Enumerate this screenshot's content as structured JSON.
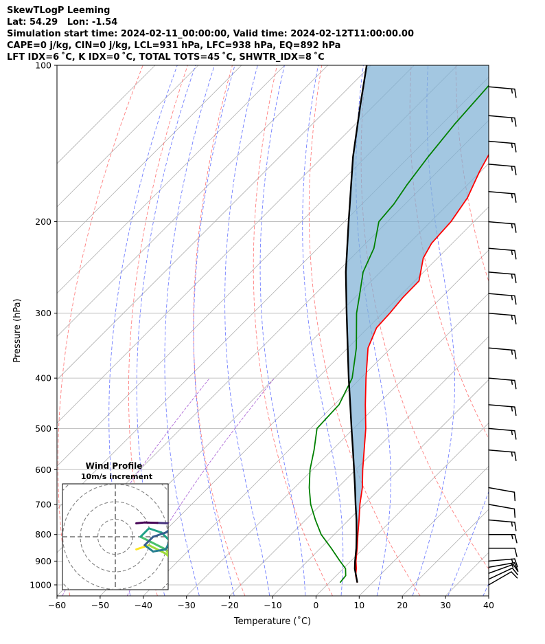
{
  "header": {
    "line1": "SkewTLogP Leeming",
    "line2": "Lat: 54.29   Lon: -1.54",
    "line3": "Simulation start time: 2024-02-11_00:00:00, Valid time: 2024-02-12T11:00:00.00",
    "line4": "CAPE=0 j/kg, CIN=0 j/kg, LCL=931 hPa, LFC=938 hPa, EQ=892 hPa",
    "line5": "LFT IDX=6 ˚C, K IDX=0 ˚C, TOTAL TOTS=45 ˚C, SHWTR_IDX=8 ˚C"
  },
  "chart_data": {
    "type": "line",
    "title": "SkewTLogP Leeming",
    "xlabel": "Temperature (˚C)",
    "ylabel": "Pressure (hPa)",
    "xlim": [
      -60,
      40
    ],
    "ylim": [
      1050,
      100
    ],
    "y_scale": "log",
    "skew_deg": 45,
    "grid": true,
    "x_ticks": [
      -60,
      -50,
      -40,
      -30,
      -20,
      -10,
      0,
      10,
      20,
      30,
      40
    ],
    "x_tick_labels": [
      "−60",
      "−50",
      "−40",
      "−30",
      "−20",
      "−10",
      "0",
      "10",
      "20",
      "30",
      "40"
    ],
    "y_ticks": [
      1000,
      900,
      800,
      700,
      600,
      500,
      400,
      300,
      200,
      100
    ],
    "y_tick_labels": [
      "1000",
      "900",
      "800",
      "700",
      "600",
      "500",
      "400",
      "300",
      "200",
      "100"
    ],
    "series": [
      {
        "role": "temperature",
        "color": "#ff0000",
        "points": [
          {
            "p": 990,
            "t": 6.5
          },
          {
            "p": 960,
            "t": 4.5
          },
          {
            "p": 930,
            "t": 3.0
          },
          {
            "p": 900,
            "t": 1.2
          },
          {
            "p": 850,
            "t": -1.5
          },
          {
            "p": 800,
            "t": -4.5
          },
          {
            "p": 750,
            "t": -7.6
          },
          {
            "p": 700,
            "t": -11.0
          },
          {
            "p": 650,
            "t": -14.3
          },
          {
            "p": 600,
            "t": -18.4
          },
          {
            "p": 550,
            "t": -22.6
          },
          {
            "p": 500,
            "t": -27.2
          },
          {
            "p": 450,
            "t": -32.8
          },
          {
            "p": 400,
            "t": -38.8
          },
          {
            "p": 350,
            "t": -45.3
          },
          {
            "p": 320,
            "t": -48.0
          },
          {
            "p": 300,
            "t": -48.3
          },
          {
            "p": 280,
            "t": -48.9
          },
          {
            "p": 260,
            "t": -49.0
          },
          {
            "p": 235,
            "t": -53.3
          },
          {
            "p": 220,
            "t": -54.8
          },
          {
            "p": 200,
            "t": -55.3
          },
          {
            "p": 180,
            "t": -57.0
          },
          {
            "p": 160,
            "t": -60.3
          },
          {
            "p": 145,
            "t": -62.6
          },
          {
            "p": 130,
            "t": -67.0
          },
          {
            "p": 118,
            "t": -70.0
          },
          {
            "p": 109,
            "t": -72.5
          },
          {
            "p": 100,
            "t": -74.6
          }
        ]
      },
      {
        "role": "dewpoint",
        "color": "#008000",
        "points": [
          {
            "p": 990,
            "t": 2.5
          },
          {
            "p": 960,
            "t": 2.2
          },
          {
            "p": 930,
            "t": 0.5
          },
          {
            "p": 900,
            "t": -2.5
          },
          {
            "p": 850,
            "t": -7.5
          },
          {
            "p": 800,
            "t": -13.0
          },
          {
            "p": 750,
            "t": -17.7
          },
          {
            "p": 700,
            "t": -22.4
          },
          {
            "p": 650,
            "t": -26.6
          },
          {
            "p": 600,
            "t": -30.6
          },
          {
            "p": 550,
            "t": -34.2
          },
          {
            "p": 500,
            "t": -38.5
          },
          {
            "p": 450,
            "t": -38.9
          },
          {
            "p": 400,
            "t": -42.0
          },
          {
            "p": 350,
            "t": -48.0
          },
          {
            "p": 300,
            "t": -56.0
          },
          {
            "p": 280,
            "t": -59.0
          },
          {
            "p": 250,
            "t": -64.0
          },
          {
            "p": 225,
            "t": -67.0
          },
          {
            "p": 200,
            "t": -72.0
          },
          {
            "p": 185,
            "t": -72.6
          },
          {
            "p": 170,
            "t": -74.0
          },
          {
            "p": 150,
            "t": -75.6
          },
          {
            "p": 130,
            "t": -77.0
          },
          {
            "p": 110,
            "t": -78.0
          },
          {
            "p": 100,
            "t": -78.2
          }
        ]
      },
      {
        "role": "parcel",
        "color": "#000000",
        "points": [
          {
            "p": 990,
            "t": 6.5
          },
          {
            "p": 931,
            "t": 2.7
          },
          {
            "p": 900,
            "t": 1.0
          },
          {
            "p": 850,
            "t": -1.7
          },
          {
            "p": 800,
            "t": -4.8
          },
          {
            "p": 750,
            "t": -8.2
          },
          {
            "p": 700,
            "t": -12.0
          },
          {
            "p": 650,
            "t": -16.0
          },
          {
            "p": 600,
            "t": -20.4
          },
          {
            "p": 550,
            "t": -25.2
          },
          {
            "p": 500,
            "t": -30.5
          },
          {
            "p": 450,
            "t": -36.3
          },
          {
            "p": 400,
            "t": -42.8
          },
          {
            "p": 350,
            "t": -50.0
          },
          {
            "p": 300,
            "t": -58.3
          },
          {
            "p": 250,
            "t": -68.0
          },
          {
            "p": 200,
            "t": -79.0
          },
          {
            "p": 150,
            "t": -93.0
          },
          {
            "p": 120,
            "t": -103.0
          },
          {
            "p": 100,
            "t": -111.0
          }
        ]
      }
    ],
    "background_lines": {
      "isotherms_color": "#b0b0b0",
      "dry_adiabats_color": "#ff6060",
      "moist_adiabats_color": "#4f5fff",
      "mixing_ratio_color": "#a050d0"
    },
    "wind_barbs": [
      {
        "p": 1000,
        "dir": 240,
        "speed_kt": 10
      },
      {
        "p": 975,
        "dir": 245,
        "speed_kt": 10
      },
      {
        "p": 950,
        "dir": 250,
        "speed_kt": 10
      },
      {
        "p": 925,
        "dir": 260,
        "speed_kt": 15
      },
      {
        "p": 900,
        "dir": 265,
        "speed_kt": 15
      },
      {
        "p": 850,
        "dir": 270,
        "speed_kt": 10
      },
      {
        "p": 800,
        "dir": 270,
        "speed_kt": 15
      },
      {
        "p": 750,
        "dir": 275,
        "speed_kt": 15
      },
      {
        "p": 700,
        "dir": 280,
        "speed_kt": 10
      },
      {
        "p": 650,
        "dir": 280,
        "speed_kt": 10
      },
      {
        "p": 550,
        "dir": 275,
        "speed_kt": 15
      },
      {
        "p": 500,
        "dir": 275,
        "speed_kt": 15
      },
      {
        "p": 450,
        "dir": 275,
        "speed_kt": 15
      },
      {
        "p": 400,
        "dir": 275,
        "speed_kt": 15
      },
      {
        "p": 350,
        "dir": 275,
        "speed_kt": 15
      },
      {
        "p": 300,
        "dir": 275,
        "speed_kt": 15
      },
      {
        "p": 275,
        "dir": 275,
        "speed_kt": 15
      },
      {
        "p": 250,
        "dir": 275,
        "speed_kt": 15
      },
      {
        "p": 225,
        "dir": 275,
        "speed_kt": 15
      },
      {
        "p": 200,
        "dir": 275,
        "speed_kt": 15
      },
      {
        "p": 175,
        "dir": 275,
        "speed_kt": 15
      },
      {
        "p": 155,
        "dir": 275,
        "speed_kt": 15
      },
      {
        "p": 140,
        "dir": 275,
        "speed_kt": 15
      },
      {
        "p": 125,
        "dir": 275,
        "speed_kt": 15
      },
      {
        "p": 110,
        "dir": 275,
        "speed_kt": 15
      }
    ],
    "hodograph": {
      "title": "Wind Profile",
      "subtitle": "10m/s increment",
      "ring_increment_ms": 10,
      "rings": 3,
      "points": [
        {
          "u": 5.0,
          "v": -3.0
        },
        {
          "u": 8.0,
          "v": -2.0
        },
        {
          "u": 12.0,
          "v": -4.0
        },
        {
          "u": 14.0,
          "v": -6.0
        },
        {
          "u": 12.0,
          "v": -3.0
        },
        {
          "u": 10.0,
          "v": -2.0
        },
        {
          "u": 8.0,
          "v": -1.0
        },
        {
          "u": 6.0,
          "v": 0.0
        },
        {
          "u": 8.0,
          "v": 2.0
        },
        {
          "u": 11.0,
          "v": 1.0
        },
        {
          "u": 13.0,
          "v": -1.0
        },
        {
          "u": 12.0,
          "v": -3.0
        },
        {
          "u": 9.0,
          "v": -3.5
        },
        {
          "u": 7.0,
          "v": -2.0
        },
        {
          "u": 9.0,
          "v": 0.0
        },
        {
          "u": 12.0,
          "v": 1.0
        },
        {
          "u": 14.0,
          "v": 2.5
        },
        {
          "u": 16.0,
          "v": 3.0
        },
        {
          "u": 13.0,
          "v": 3.2
        },
        {
          "u": 10.0,
          "v": 3.3
        },
        {
          "u": 7.0,
          "v": 3.4
        },
        {
          "u": 5.0,
          "v": 3.2
        }
      ]
    }
  }
}
